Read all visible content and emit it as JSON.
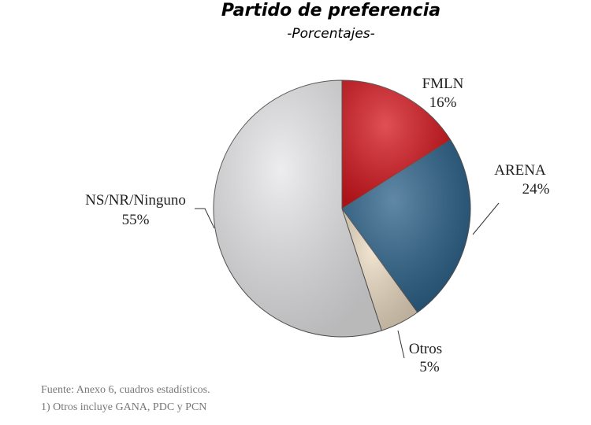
{
  "chart_data": {
    "type": "pie",
    "title": "Partido de preferencia",
    "subtitle": "-Porcentajes-",
    "categories": [
      "FMLN",
      "ARENA",
      "Otros",
      "NS/NR/Ninguno"
    ],
    "values": [
      16,
      24,
      5,
      55
    ],
    "value_labels": [
      "16%",
      "24%",
      "5%",
      "55%"
    ],
    "colors": [
      "#d5161d",
      "#2b6189",
      "#ecdcc3",
      "#e7e7e9"
    ],
    "notes": [
      "Fuente: Anexo 6, cuadros estadísticos.",
      "1) Otros incluye GANA, PDC y PCN"
    ]
  }
}
